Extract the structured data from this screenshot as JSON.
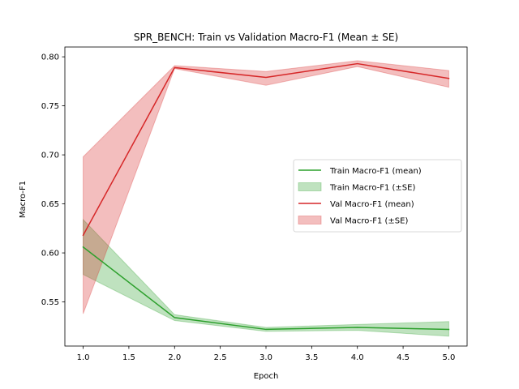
{
  "chart_data": {
    "type": "line",
    "title": "SPR_BENCH: Train vs Validation Macro-F1 (Mean ± SE)",
    "xlabel": "Epoch",
    "ylabel": "Macro-F1",
    "xlim": [
      0.8,
      5.2
    ],
    "ylim": [
      0.505,
      0.81
    ],
    "xticks": [
      1.0,
      1.5,
      2.0,
      2.5,
      3.0,
      3.5,
      4.0,
      4.5,
      5.0
    ],
    "xtick_labels": [
      "1.0",
      "1.5",
      "2.0",
      "2.5",
      "3.0",
      "3.5",
      "4.0",
      "4.5",
      "5.0"
    ],
    "yticks": [
      0.55,
      0.6,
      0.65,
      0.7,
      0.75,
      0.8
    ],
    "ytick_labels": [
      "0.55",
      "0.60",
      "0.65",
      "0.70",
      "0.75",
      "0.80"
    ],
    "grid": false,
    "legend_position": "right",
    "x": [
      1,
      2,
      3,
      4,
      5
    ],
    "series": [
      {
        "name": "Train Macro-F1 (mean)",
        "band_name": "Train Macro-F1 (±SE)",
        "color": "#2ca02c",
        "mean": [
          0.606,
          0.534,
          0.522,
          0.524,
          0.522
        ],
        "lower": [
          0.578,
          0.531,
          0.52,
          0.521,
          0.515
        ],
        "upper": [
          0.634,
          0.537,
          0.524,
          0.527,
          0.53
        ]
      },
      {
        "name": "Val Macro-F1 (mean)",
        "band_name": "Val Macro-F1 (±SE)",
        "color": "#d62728",
        "mean": [
          0.618,
          0.789,
          0.779,
          0.793,
          0.778
        ],
        "lower": [
          0.538,
          0.788,
          0.771,
          0.79,
          0.769
        ],
        "upper": [
          0.698,
          0.791,
          0.785,
          0.796,
          0.786
        ]
      }
    ]
  }
}
